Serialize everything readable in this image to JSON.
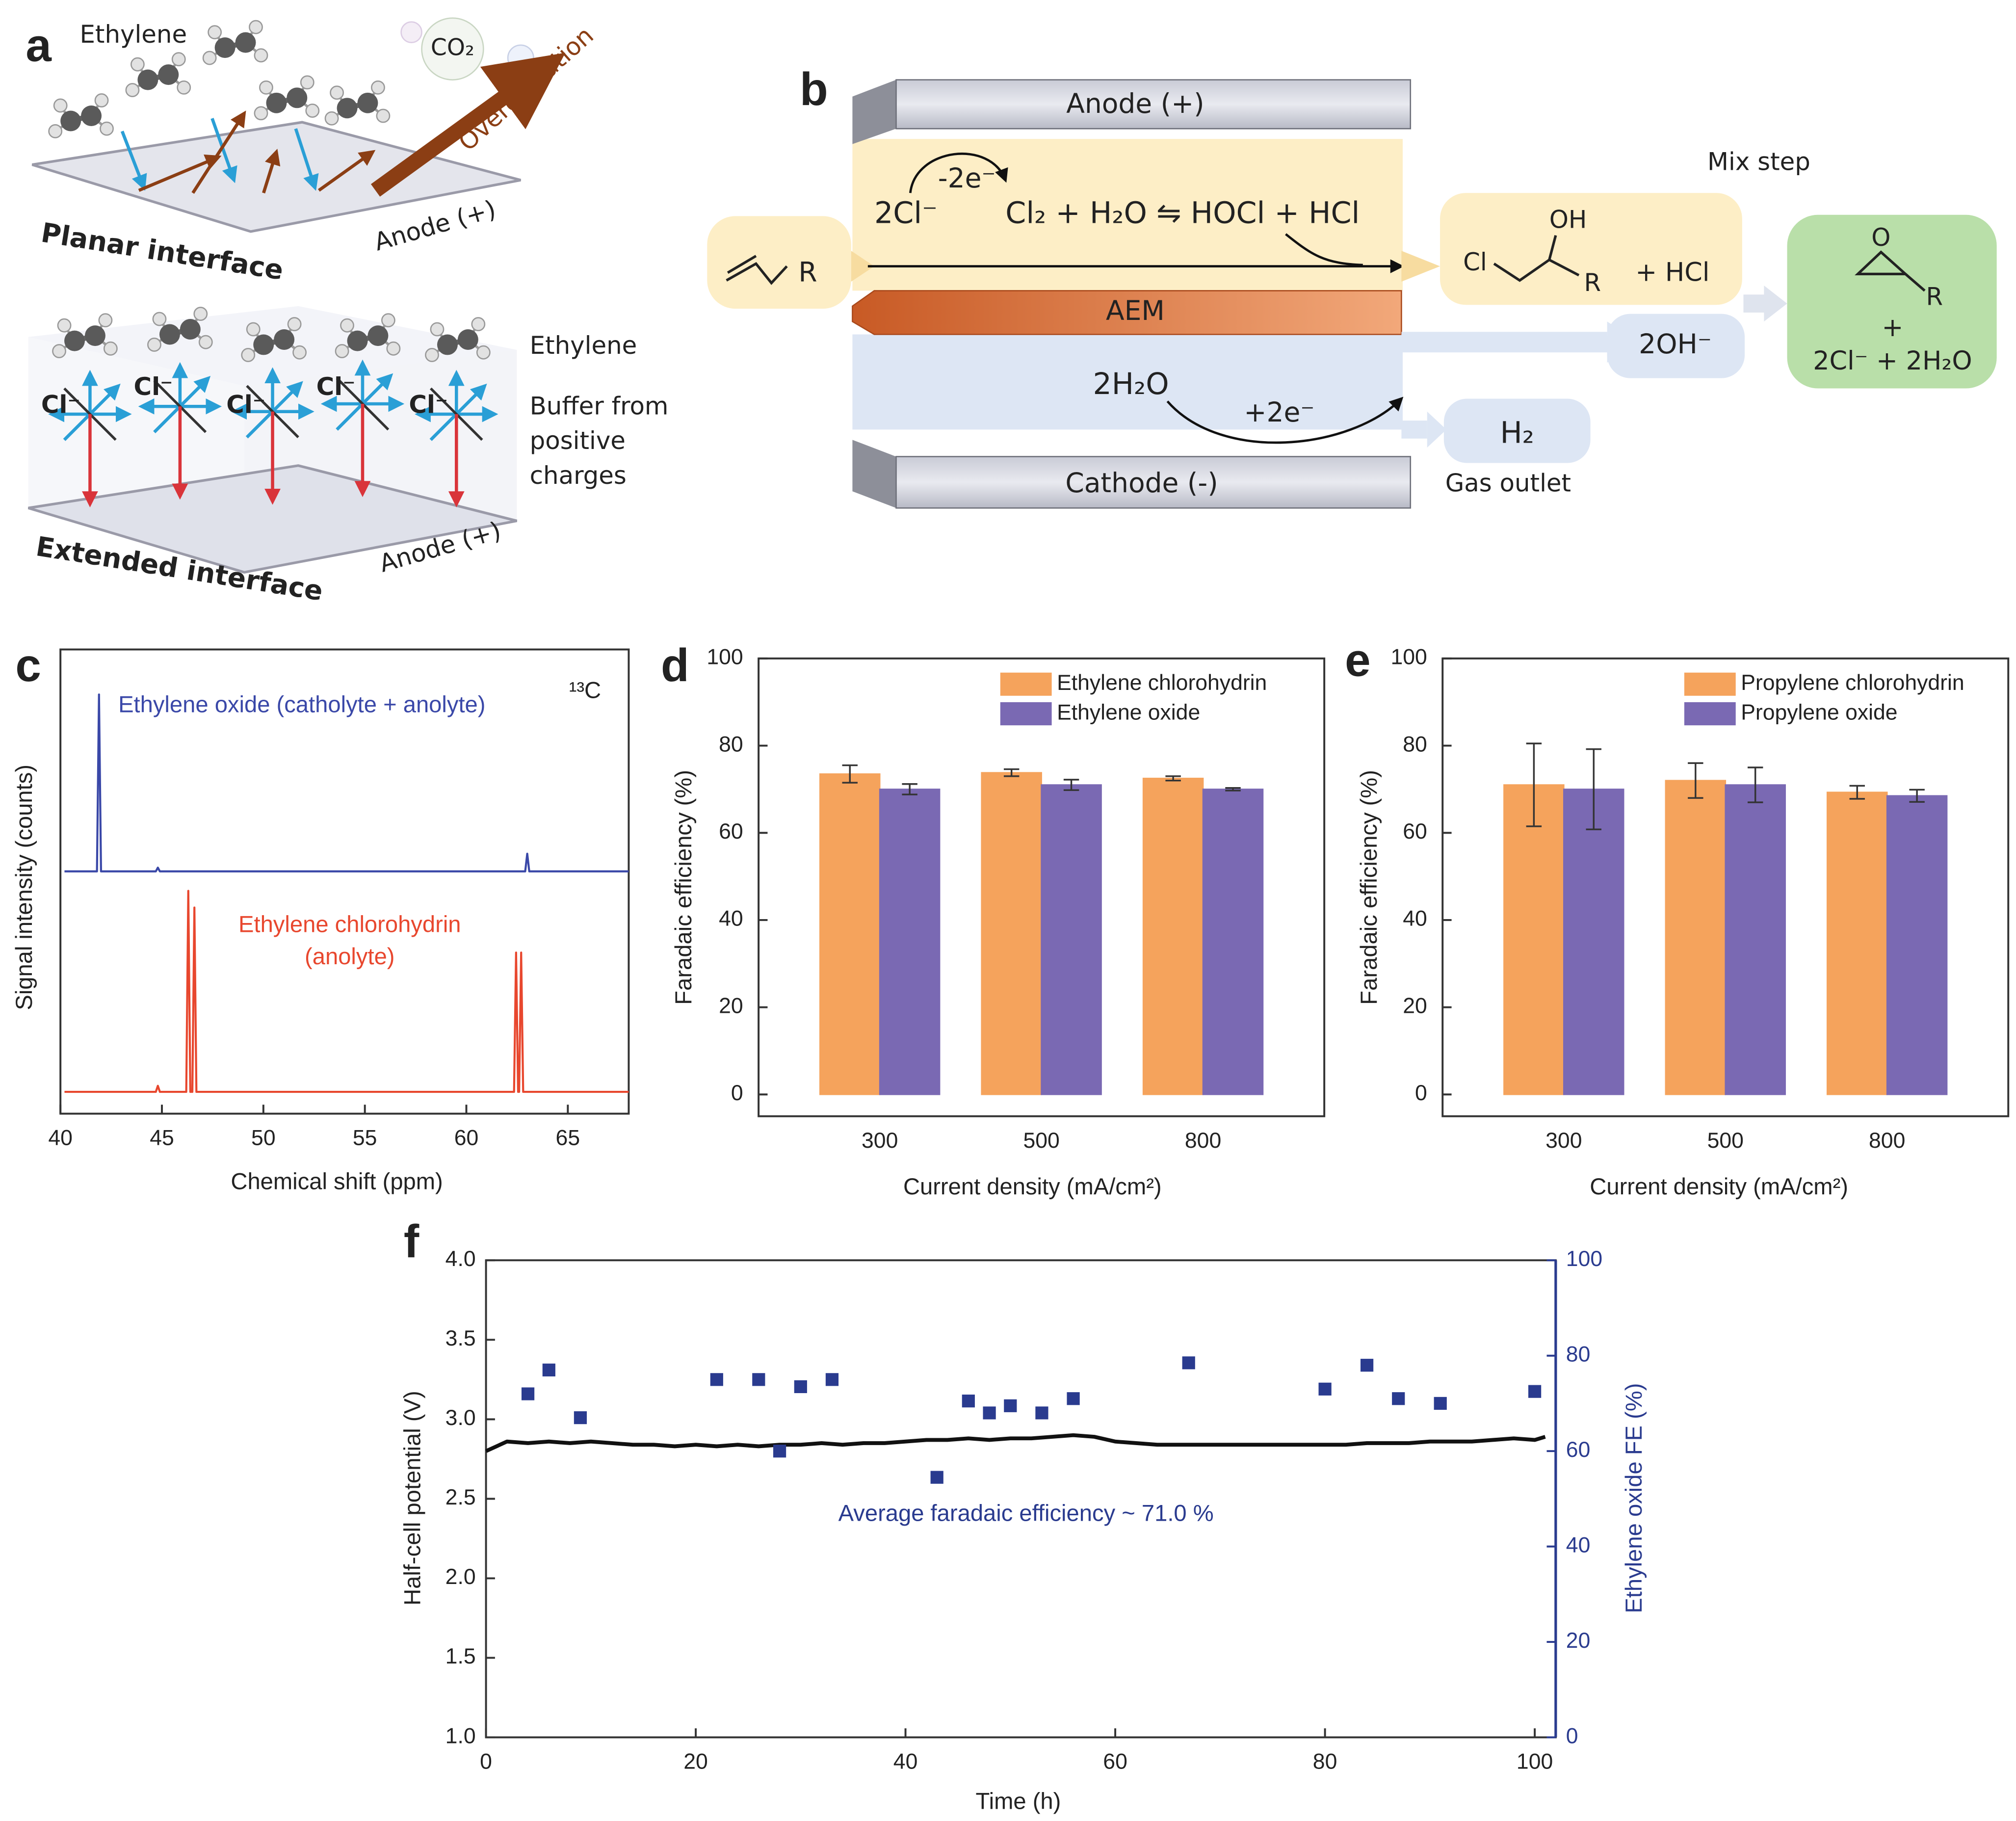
{
  "panel_a": {
    "label": "a",
    "top": {
      "molecule": "Ethylene",
      "bubble": "CO₂",
      "arrow": "Overoxidation",
      "interface": "Planar interface",
      "electrode": "Anode (+)"
    },
    "bottom": {
      "molecule": "Ethylene",
      "ions": [
        "Cl⁻",
        "Cl⁻",
        "Cl⁻",
        "Cl⁻",
        "Cl⁻"
      ],
      "note": [
        "Buffer from",
        "positive",
        "charges"
      ],
      "interface": "Extended interface",
      "electrode": "Anode (+)"
    }
  },
  "panel_b": {
    "label": "b",
    "anode": "Anode (+)",
    "cathode": "Cathode (-)",
    "membrane": "AEM",
    "anode_reaction": {
      "electrons": "-2e⁻",
      "reactant": "2Cl⁻",
      "equation": "Cl₂ + H₂O ⇋ HOCl + HCl"
    },
    "cathode_reaction": {
      "reactant": "2H₂O",
      "electrons": "+2e⁻"
    },
    "feed": {
      "substituent": "R"
    },
    "chlorohydrin": {
      "hydroxyl": "OH",
      "chlorine": "Cl",
      "substituent": "R",
      "byproduct": "+ HCl"
    },
    "hydroxide": "2OH⁻",
    "gas": {
      "formula": "H₂",
      "label": "Gas outlet"
    },
    "mix_step": "Mix step",
    "epoxide": {
      "oxygen": "O",
      "substituent": "R",
      "plus": "+",
      "byproduct": "2Cl⁻ + 2H₂O"
    }
  },
  "chart_data": [
    {
      "type": "line",
      "panel": "c",
      "xlabel": "Chemical shift (ppm)",
      "ylabel": "Signal intensity (counts)",
      "annotations": [
        "Ethylene oxide (catholyte + anolyte)",
        "Ethylene chlorohydrin",
        "(anolyte)",
        "¹³C"
      ],
      "xlim": [
        40,
        68
      ],
      "xticks": [
        40,
        45,
        50,
        55,
        60,
        65
      ],
      "ylim": [
        0,
        100
      ],
      "series": [
        {
          "color": "#3a48a8",
          "x": [
            40.2,
            41.8,
            41.9,
            42.0,
            44.7,
            44.8,
            44.9,
            62.9,
            63.0,
            63.1,
            68
          ],
          "values": [
            52.2,
            52.2,
            90.3,
            52.2,
            52.2,
            53,
            52.2,
            52.2,
            56,
            52.2,
            52.2
          ]
        },
        {
          "color": "#e8472e",
          "x": [
            40.2,
            44.7,
            44.8,
            44.9,
            46.2,
            46.3,
            46.4,
            46.5,
            46.6,
            46.7,
            62.35,
            62.45,
            62.55,
            62.6,
            62.7,
            62.8,
            68
          ],
          "values": [
            4.7,
            4.7,
            6,
            4.7,
            4.7,
            48,
            4.7,
            4.7,
            44.4,
            4.7,
            4.7,
            34.7,
            4.7,
            4.7,
            34.7,
            4.7,
            4.7
          ]
        }
      ]
    },
    {
      "type": "bar",
      "panel": "d",
      "xlabel": "Current density (mA/cm²)",
      "ylabel": "Faradaic efficiency (%)",
      "categories": [
        "300",
        "500",
        "800"
      ],
      "ylim": [
        -5,
        100
      ],
      "yticks": [
        0,
        20,
        40,
        60,
        80,
        100
      ],
      "legend": "upper right",
      "series": [
        {
          "name": "Ethylene chlorohydrin",
          "color": "#f5a35c",
          "values": [
            73.5,
            73.8,
            72.5
          ],
          "errors": [
            2,
            0.8,
            0.5
          ]
        },
        {
          "name": "Ethylene oxide",
          "color": "#7a69b3",
          "values": [
            70,
            71,
            70
          ],
          "errors": [
            1.2,
            1.2,
            0.3
          ]
        }
      ]
    },
    {
      "type": "bar",
      "panel": "e",
      "xlabel": "Current density (mA/cm²)",
      "ylabel": "Faradaic efficiency (%)",
      "categories": [
        "300",
        "500",
        "800"
      ],
      "ylim": [
        -5,
        100
      ],
      "yticks": [
        0,
        20,
        40,
        60,
        80,
        100
      ],
      "legend": "upper right",
      "series": [
        {
          "name": "Propylene chlorohydrin",
          "color": "#f5a35c",
          "values": [
            71,
            72,
            69.3
          ],
          "errors": [
            9.5,
            4,
            1.5
          ]
        },
        {
          "name": "Propylene oxide",
          "color": "#7a69b3",
          "values": [
            70,
            71,
            68.5
          ],
          "errors": [
            9.2,
            4,
            1.4
          ]
        }
      ]
    },
    {
      "type": "line",
      "panel": "f",
      "xlabel": "Time (h)",
      "ylabel": "Half-cell potential (V)",
      "y2label": "Ethylene oxide FE (%)",
      "annotations": [
        "Average faradaic efficiency ~ 71.0 %"
      ],
      "xlim": [
        0,
        102
      ],
      "xticks": [
        0,
        20,
        40,
        60,
        80,
        100
      ],
      "ylim": [
        1,
        4
      ],
      "yticks": [
        {
          "value": 1,
          "label": "1.0"
        },
        1.5,
        {
          "value": 2,
          "label": "2.0"
        },
        2.5,
        {
          "value": 3,
          "label": "3.0"
        },
        3.5,
        {
          "value": 4,
          "label": "4.0"
        }
      ],
      "y2lim": [
        0,
        100
      ],
      "y2ticks": [
        0,
        20,
        40,
        60,
        80,
        100
      ],
      "series": [
        {
          "color": "#111111",
          "x": [
            0,
            2,
            4,
            6,
            8,
            10,
            12,
            14,
            16,
            18,
            20,
            22,
            24,
            26,
            28,
            30,
            32,
            34,
            36,
            38,
            40,
            42,
            44,
            46,
            48,
            50,
            52,
            54,
            56,
            58,
            60,
            62,
            64,
            66,
            68,
            70,
            72,
            74,
            76,
            78,
            80,
            82,
            84,
            86,
            88,
            90,
            92,
            94,
            96,
            98,
            100,
            101
          ],
          "values": [
            2.8,
            2.86,
            2.85,
            2.86,
            2.85,
            2.86,
            2.85,
            2.84,
            2.84,
            2.83,
            2.84,
            2.83,
            2.84,
            2.83,
            2.84,
            2.84,
            2.85,
            2.84,
            2.85,
            2.85,
            2.86,
            2.87,
            2.87,
            2.88,
            2.87,
            2.88,
            2.88,
            2.89,
            2.9,
            2.89,
            2.86,
            2.85,
            2.84,
            2.84,
            2.84,
            2.84,
            2.84,
            2.84,
            2.84,
            2.84,
            2.84,
            2.84,
            2.85,
            2.85,
            2.85,
            2.86,
            2.86,
            2.86,
            2.87,
            2.88,
            2.87,
            2.89
          ]
        },
        {
          "type": "scatter",
          "axis": "y2",
          "color": "#2a3b8f",
          "x": [
            4,
            6,
            9,
            22,
            26,
            28,
            30,
            33,
            43,
            46,
            48,
            50,
            53,
            56,
            67,
            80,
            84,
            87,
            91,
            100
          ],
          "values": [
            72,
            77,
            67,
            75,
            75,
            60,
            73.5,
            75,
            54.5,
            70.5,
            68,
            69.5,
            68,
            71,
            78.5,
            73,
            78,
            71,
            70,
            72.5
          ]
        }
      ]
    }
  ]
}
